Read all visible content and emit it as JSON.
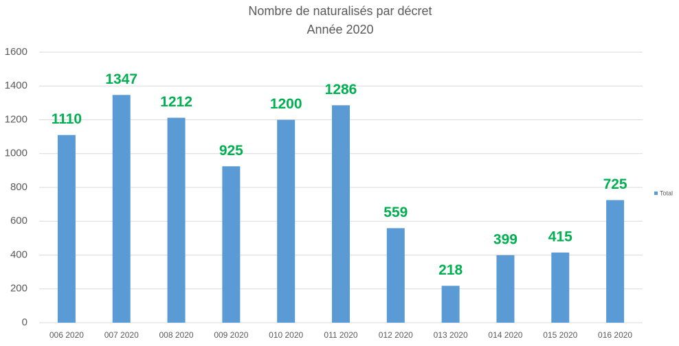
{
  "chart_data": {
    "type": "bar",
    "title": "Nombre de naturalisés par décret",
    "subtitle": "Année 2020",
    "categories": [
      "006 2020",
      "007 2020",
      "008 2020",
      "009 2020",
      "010 2020",
      "011 2020",
      "012 2020",
      "013 2020",
      "014 2020",
      "015 2020",
      "016 2020"
    ],
    "series": [
      {
        "name": "Total",
        "color": "#5b9bd5",
        "values": [
          1110,
          1347,
          1212,
          925,
          1200,
          1286,
          559,
          218,
          399,
          415,
          725
        ]
      }
    ],
    "value_label_color": "#00b050",
    "ylim": [
      0,
      1600
    ],
    "yticks": [
      0,
      200,
      400,
      600,
      800,
      1000,
      1200,
      1400,
      1600
    ],
    "grid": true,
    "legend": "right"
  }
}
